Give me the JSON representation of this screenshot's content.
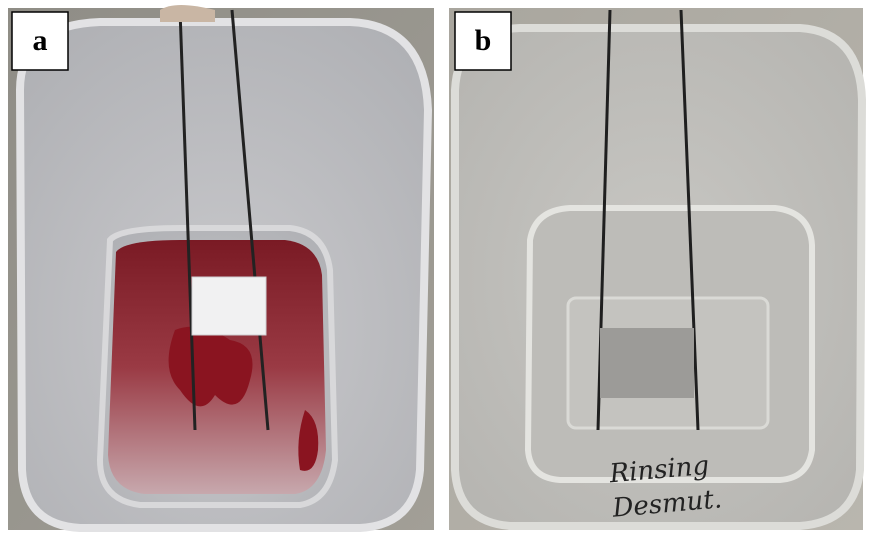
{
  "panels": [
    {
      "label": "a"
    },
    {
      "label": "b",
      "container_text": [
        "Rinsing",
        "Desmut."
      ]
    }
  ]
}
